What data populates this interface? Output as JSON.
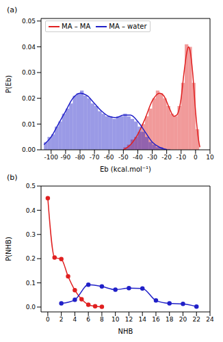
{
  "chart_data": [
    {
      "type": "histogram",
      "title": "(a)",
      "x_label": "Eb (kcal.mol⁻¹)",
      "y_label": "P(Eb)",
      "xlim": [
        -107,
        10
      ],
      "xticks": [
        -100,
        -90,
        -80,
        -70,
        -60,
        -50,
        -40,
        -30,
        -20,
        -10,
        0,
        10
      ],
      "ylim": [
        0,
        0.051
      ],
      "yticks": [
        {
          "value": 0,
          "label": "0.00"
        },
        0.01,
        0.02,
        0.03,
        0.04,
        0.05
      ],
      "legend": "upper left",
      "series": [
        {
          "name": "MA – MA",
          "color": "#e02020",
          "bins": [
            -50,
            -47.5,
            -45,
            -42.5,
            -40,
            -37.5,
            -35,
            -32.5,
            -30,
            -27.5,
            -25,
            -22.5,
            -20,
            -17.5,
            -15,
            -12.5,
            -10,
            -7.5,
            -5,
            -2.5,
            0,
            2.5
          ],
          "values": [
            0.001,
            0.002,
            0.004,
            0.005,
            0.007,
            0.01,
            0.013,
            0.016,
            0.02,
            0.023,
            0.022,
            0.02,
            0.017,
            0.014,
            0.013,
            0.017,
            0.026,
            0.041,
            0.04,
            0.026,
            0.008
          ],
          "curve": {
            "x": [
              -50,
              -45,
              -40,
              -35,
              -30,
              -25,
              -22,
              -18,
              -15,
              -13,
              -10,
              -8,
              -6,
              -5,
              -4,
              -2,
              0,
              2,
              3
            ],
            "values": [
              0,
              0.002,
              0.006,
              0.012,
              0.019,
              0.022,
              0.021,
              0.016,
              0.013,
              0.0135,
              0.02,
              0.03,
              0.038,
              0.04,
              0.039,
              0.03,
              0.015,
              0.004,
              0.001
            ]
          }
        },
        {
          "name": "MA – water",
          "color": "#2020c8",
          "bins": [
            -105,
            -102.5,
            -100,
            -97.5,
            -95,
            -92.5,
            -90,
            -87.5,
            -85,
            -82.5,
            -80,
            -77.5,
            -75,
            -72.5,
            -70,
            -67.5,
            -65,
            -62.5,
            -60,
            -57.5,
            -55,
            -52.5,
            -50,
            -47.5,
            -45,
            -42.5,
            -40,
            -37.5,
            -35,
            -32.5,
            -30,
            -27.5,
            -25,
            -22.5,
            -20,
            -17.5
          ],
          "values": [
            0.003,
            0.005,
            0.006,
            0.009,
            0.011,
            0.014,
            0.016,
            0.018,
            0.021,
            0.022,
            0.023,
            0.021,
            0.02,
            0.018,
            0.017,
            0.015,
            0.014,
            0.013,
            0.013,
            0.012,
            0.013,
            0.013,
            0.014,
            0.013,
            0.012,
            0.011,
            0.009,
            0.007,
            0.005,
            0.003,
            0.002,
            0.001,
            0.001,
            0.0005,
            0.0003
          ],
          "curve": {
            "x": [
              -105,
              -100,
              -95,
              -90,
              -85,
              -80,
              -75,
              -70,
              -65,
              -60,
              -55,
              -50,
              -45,
              -40,
              -35,
              -30,
              -25,
              -20
            ],
            "values": [
              0.002,
              0.005,
              0.01,
              0.015,
              0.02,
              0.022,
              0.021,
              0.018,
              0.015,
              0.013,
              0.0125,
              0.0135,
              0.0135,
              0.011,
              0.007,
              0.003,
              0.001,
              0
            ]
          }
        }
      ]
    },
    {
      "type": "line",
      "title": "(b)",
      "x_label": "NHB",
      "y_label": "P(NHB)",
      "xlim": [
        -1,
        24
      ],
      "xticks": [
        0,
        2,
        4,
        6,
        8,
        10,
        12,
        14,
        16,
        18,
        20,
        22,
        24
      ],
      "ylim": [
        -0.02,
        0.5
      ],
      "yticks": [
        {
          "value": 0,
          "label": "0.0"
        },
        0.1,
        0.2,
        0.3,
        0.4,
        0.5
      ],
      "marker": "o",
      "series": [
        {
          "color": "#e02020",
          "x": [
            0,
            1,
            2,
            3,
            4,
            5,
            6,
            7,
            8
          ],
          "values": [
            0.45,
            0.205,
            0.198,
            0.127,
            0.07,
            0.032,
            0.01,
            0.003,
            0.001
          ]
        },
        {
          "color": "#2020c8",
          "x": [
            2,
            4,
            6,
            8,
            10,
            12,
            14,
            16,
            18,
            20,
            22
          ],
          "values": [
            0.015,
            0.03,
            0.092,
            0.085,
            0.072,
            0.078,
            0.077,
            0.027,
            0.015,
            0.013,
            0.002
          ]
        }
      ]
    }
  ]
}
